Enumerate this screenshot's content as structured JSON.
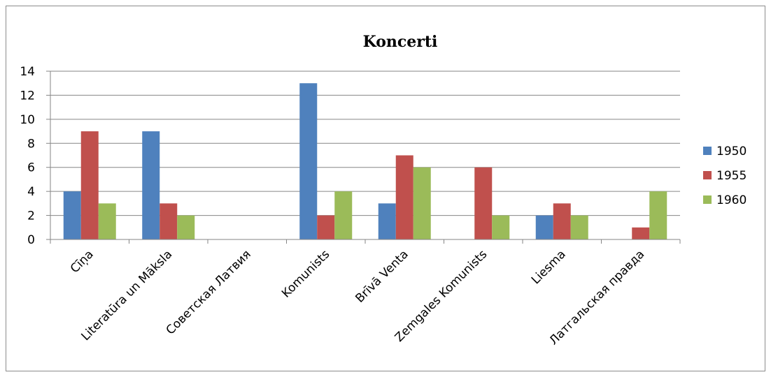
{
  "chart_data": {
    "type": "bar",
    "title": "Koncerti",
    "xlabel": "",
    "ylabel": "",
    "ylim": [
      0,
      14
    ],
    "yticks": [
      0,
      2,
      4,
      6,
      8,
      10,
      12,
      14
    ],
    "grid": true,
    "legend_position": "right",
    "categories": [
      "Cīņa",
      "Literatūra un Māksla",
      "Советская Латвия",
      "Komunists",
      "Brīvā Venta",
      "Zemgales Komunists",
      "Liesma",
      "Латгальская правда"
    ],
    "series": [
      {
        "name": "1950",
        "color": "#4f81bd",
        "values": [
          4,
          9,
          0,
          13,
          3,
          0,
          2,
          0
        ]
      },
      {
        "name": "1955",
        "color": "#c0504d",
        "values": [
          9,
          3,
          0,
          2,
          7,
          6,
          3,
          1
        ]
      },
      {
        "name": "1960",
        "color": "#9bbb59",
        "values": [
          3,
          2,
          0,
          4,
          6,
          2,
          2,
          4
        ]
      }
    ]
  }
}
